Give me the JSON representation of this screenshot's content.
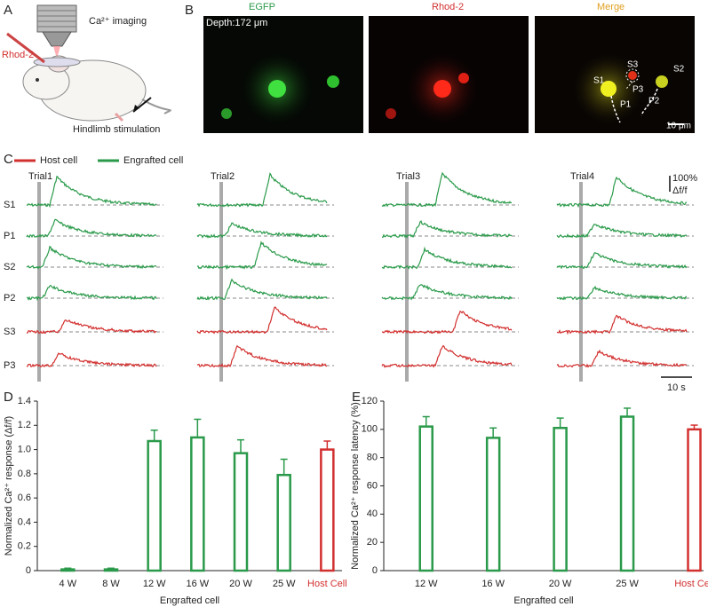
{
  "panel_labels": [
    "A",
    "B",
    "C",
    "D",
    "E"
  ],
  "panel_a": {
    "imaging": "Ca²⁺ imaging",
    "dye": "Rhod-2",
    "stimulation": "Hindlimb stimulation"
  },
  "panel_b": {
    "depth": "Depth:172 μm",
    "channels": [
      "EGFP",
      "Rhod-2",
      "Merge"
    ],
    "cells": [
      "S1",
      "S2",
      "S3",
      "P1",
      "P2",
      "P3"
    ],
    "scale": "10 μm"
  },
  "panel_c": {
    "legend": [
      "Host cell",
      "Engrafted cell"
    ],
    "trials": [
      "Trial1",
      "Trial2",
      "Trial3",
      "Trial4"
    ],
    "rows": [
      "S1",
      "P1",
      "S2",
      "P2",
      "S3",
      "P3"
    ],
    "scale_y": [
      "100%",
      "Δf/f"
    ],
    "scale_x": "10 s"
  },
  "chart_data": [
    {
      "type": "bar",
      "ylabel": "Normalized Ca²⁺ response (Δf/f)",
      "xlabel": "Engrafted cell",
      "categories": [
        "4 W",
        "8 W",
        "12 W",
        "16 W",
        "20 W",
        "25 W",
        "Host Cell"
      ],
      "values": [
        0.01,
        0.01,
        1.07,
        1.1,
        0.97,
        0.79,
        1.0
      ],
      "errors": [
        0.01,
        0.01,
        0.09,
        0.15,
        0.11,
        0.13,
        0.07
      ],
      "colors": [
        "#2a9a4a",
        "#2a9a4a",
        "#2a9a4a",
        "#2a9a4a",
        "#2a9a4a",
        "#2a9a4a",
        "#d2302f"
      ],
      "ylim": [
        0,
        1.4
      ],
      "yticks": [
        0,
        0.2,
        0.4,
        0.6,
        0.8,
        {
          "value": 1,
          "label": "1.0"
        },
        1.2,
        1.4
      ]
    },
    {
      "type": "bar",
      "ylabel": "Normalized Ca²⁺ response latency (%)",
      "xlabel": "Engrafted cell",
      "categories": [
        "12 W",
        "16 W",
        "20 W",
        "25 W",
        "Host Cell"
      ],
      "values": [
        102,
        94,
        101,
        109,
        100
      ],
      "errors": [
        7,
        7,
        7,
        6,
        3
      ],
      "colors": [
        "#2a9a4a",
        "#2a9a4a",
        "#2a9a4a",
        "#2a9a4a",
        "#d2302f"
      ],
      "ylim": [
        0,
        120
      ],
      "yticks": [
        0,
        20,
        40,
        60,
        80,
        100,
        120
      ]
    }
  ]
}
